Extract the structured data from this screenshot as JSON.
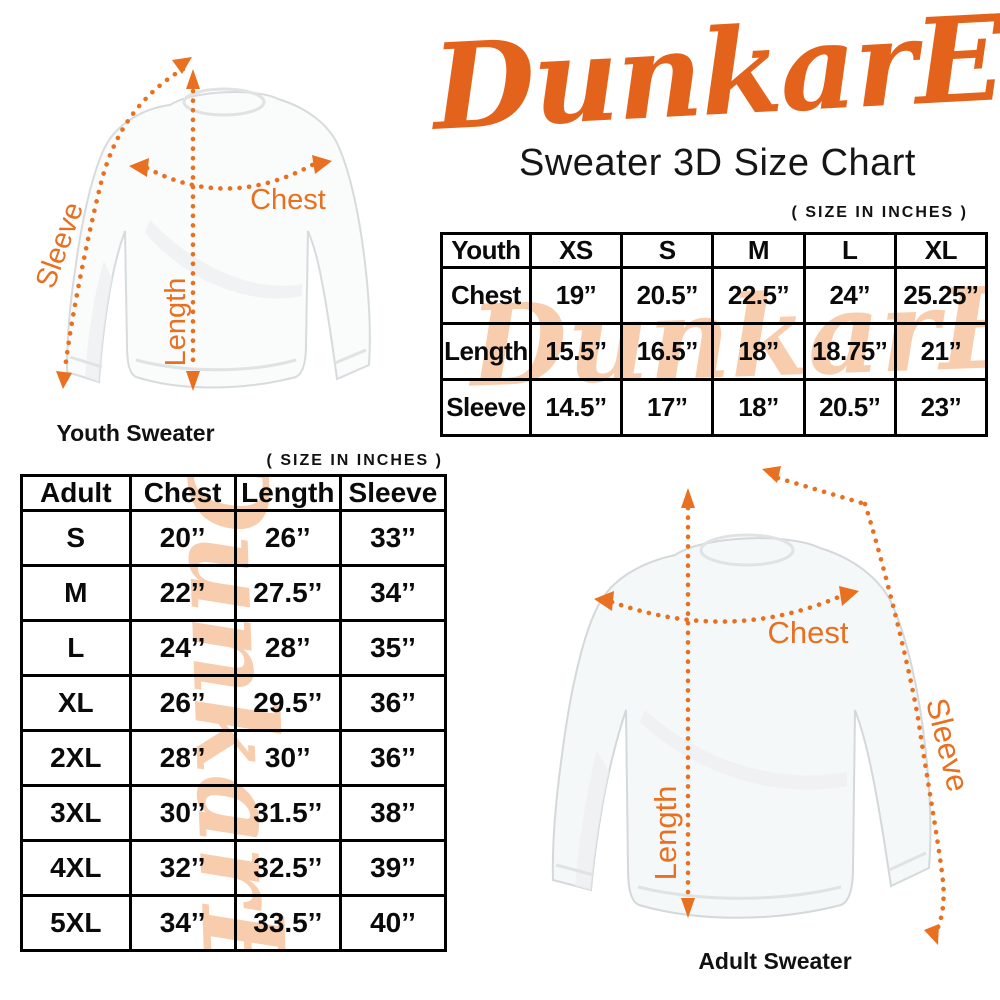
{
  "brand": {
    "logo_text": "DunkarE",
    "title": "Sweater 3D Size Chart",
    "accent_color": "#e4631c",
    "arrow_color": "#e87020",
    "watermark_color": "#f8cdad"
  },
  "youth_figure": {
    "caption": "Youth Sweater",
    "chest_label": "Chest",
    "length_label": "Length",
    "sleeve_label": "Sleeve"
  },
  "adult_figure": {
    "caption": "Adult Sweater",
    "chest_label": "Chest",
    "length_label": "Length",
    "sleeve_label": "Sleeve"
  },
  "youth_table": {
    "size_note": "( SIZE IN INCHES )",
    "watermark": "DunkarE",
    "header": [
      "Youth",
      "XS",
      "S",
      "M",
      "L",
      "XL"
    ],
    "rows": [
      [
        "Chest",
        "19’’",
        "20.5’’",
        "22.5’’",
        "24’’",
        "25.25’’"
      ],
      [
        "Length",
        "15.5’’",
        "16.5’’",
        "18’’",
        "18.75’’",
        "21’’"
      ],
      [
        "Sleeve",
        "14.5’’",
        "17’’",
        "18’’",
        "20.5’’",
        "23’’"
      ]
    ]
  },
  "adult_table": {
    "size_note": "( SIZE IN INCHES )",
    "watermark": "DunkarE",
    "header": [
      "Adult",
      "Chest",
      "Length",
      "Sleeve"
    ],
    "rows": [
      [
        "S",
        "20’’",
        "26’’",
        "33’’"
      ],
      [
        "M",
        "22’’",
        "27.5’’",
        "34’’"
      ],
      [
        "L",
        "24’’",
        "28’’",
        "35’’"
      ],
      [
        "XL",
        "26’’",
        "29.5’’",
        "36’’"
      ],
      [
        "2XL",
        "28’’",
        "30’’",
        "36’’"
      ],
      [
        "3XL",
        "30’’",
        "31.5’’",
        "38’’"
      ],
      [
        "4XL",
        "32’’",
        "32.5’’",
        "39’’"
      ],
      [
        "5XL",
        "34’’",
        "33.5’’",
        "40’’"
      ]
    ]
  },
  "chart_data": [
    {
      "type": "table",
      "title": "Youth Sweater Size Chart",
      "units": "inches",
      "columns": [
        "Youth",
        "XS",
        "S",
        "M",
        "L",
        "XL"
      ],
      "rows": [
        [
          "Chest",
          19,
          20.5,
          22.5,
          24,
          25.25
        ],
        [
          "Length",
          15.5,
          16.5,
          18,
          18.75,
          21
        ],
        [
          "Sleeve",
          14.5,
          17,
          18,
          20.5,
          23
        ]
      ]
    },
    {
      "type": "table",
      "title": "Adult Sweater Size Chart",
      "units": "inches",
      "columns": [
        "Adult",
        "Chest",
        "Length",
        "Sleeve"
      ],
      "rows": [
        [
          "S",
          20,
          26,
          33
        ],
        [
          "M",
          22,
          27.5,
          34
        ],
        [
          "L",
          24,
          28,
          35
        ],
        [
          "XL",
          26,
          29.5,
          36
        ],
        [
          "2XL",
          28,
          30,
          36
        ],
        [
          "3XL",
          30,
          31.5,
          38
        ],
        [
          "4XL",
          32,
          32.5,
          39
        ],
        [
          "5XL",
          34,
          33.5,
          40
        ]
      ]
    }
  ]
}
